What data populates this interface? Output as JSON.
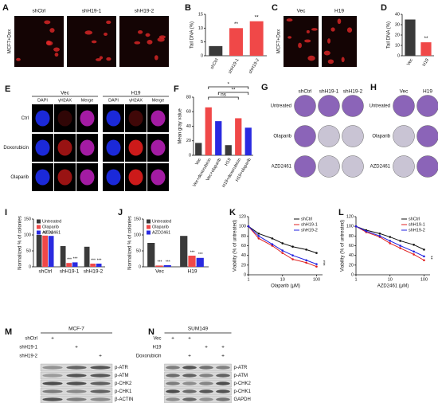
{
  "panels": {
    "A": {
      "letter": "A",
      "side": "MCF7+Dox",
      "labels": [
        "shCtrl",
        "shH19-1",
        "shH19-2"
      ]
    },
    "C": {
      "letter": "C",
      "side": "MCF7+Dox",
      "labels": [
        "Vec",
        "H19"
      ]
    },
    "E": {
      "letter": "E",
      "groups": [
        "Vec",
        "H19"
      ],
      "channels": [
        "DAPI",
        "γH2AX",
        "Merge",
        "DAPI",
        "γH2AX",
        "Merge"
      ],
      "rows": [
        "Ctrl",
        "Doxorubicin",
        "Olaparib"
      ]
    },
    "G": {
      "letter": "G",
      "columns": [
        "shCtrl",
        "shH19-1",
        "shH19-2"
      ],
      "rows": [
        "Untreated",
        "Olaparib",
        "AZD2461"
      ]
    },
    "H": {
      "letter": "H",
      "columns": [
        "Vec",
        "H19"
      ],
      "rows": [
        "Untreated",
        "Olaparib",
        "AZD2461"
      ]
    },
    "M": {
      "letter": "M",
      "title": "MCF-7",
      "conditions": [
        {
          "name": "shCtrl",
          "marks": [
            "+",
            null,
            null
          ]
        },
        {
          "name": "shH19-1",
          "marks": [
            null,
            "+",
            null
          ]
        },
        {
          "name": "shH19-2",
          "marks": [
            null,
            null,
            "+"
          ]
        }
      ],
      "proteins": [
        "p-ATR",
        "p-ATM",
        "p-CHK2",
        "p-CHK1",
        "β-ACTIN"
      ]
    },
    "N": {
      "letter": "N",
      "title": "SUM149",
      "conditions": [
        {
          "name": "Vec",
          "marks": [
            "+",
            "+",
            null,
            null
          ]
        },
        {
          "name": "H19",
          "marks": [
            null,
            null,
            "+",
            "+"
          ]
        },
        {
          "name": "Doxorubicin",
          "marks": [
            null,
            "+",
            null,
            "+"
          ]
        }
      ],
      "proteins": [
        "p-ATR",
        "p-ATM",
        "p-CHK2",
        "p-CHK1",
        "GAPDH"
      ]
    }
  },
  "chart_data": [
    {
      "panel": "B",
      "type": "bar",
      "ylabel": "Tail DNA (%)",
      "categories": [
        "shCtrl",
        "shH19-1",
        "shH19-2"
      ],
      "values": [
        3.5,
        10,
        12.5
      ],
      "colors": [
        "#3a3a3a",
        "#f04848",
        "#f04848"
      ],
      "annotations": [
        null,
        "**",
        "**"
      ],
      "ylim": [
        0,
        15
      ],
      "yticks": [
        0,
        5,
        10,
        15
      ]
    },
    {
      "panel": "D",
      "type": "bar",
      "ylabel": "Tail DNA (%)",
      "categories": [
        "Vec",
        "H19"
      ],
      "values": [
        35,
        13
      ],
      "colors": [
        "#3a3a3a",
        "#f04848"
      ],
      "annotations": [
        null,
        "**"
      ],
      "ylim": [
        0,
        40
      ],
      "yticks": [
        0,
        10,
        20,
        30,
        40
      ]
    },
    {
      "panel": "F",
      "type": "bar",
      "ylabel": "Mean gray value",
      "categories": [
        "Vec",
        "Vec+doxorubicin",
        "Vec+olaparib",
        "H19",
        "H19+doxorubicin",
        "H19+olaparib"
      ],
      "values": [
        17,
        66,
        47,
        14,
        51,
        38
      ],
      "colors": [
        "#3a3a3a",
        "#f04848",
        "#2a2ae0",
        "#3a3a3a",
        "#f04848",
        "#2a2ae0"
      ],
      "brackets": [
        "ns",
        "**",
        "*"
      ],
      "ylim": [
        0,
        80
      ],
      "yticks": [
        0,
        20,
        40,
        60,
        80
      ]
    },
    {
      "panel": "I",
      "type": "groupbar",
      "ylabel": "Normalized % of colonies",
      "categories": [
        "shCtrl",
        "shH19-1",
        "shH19-2"
      ],
      "series": [
        {
          "name": "Untreated",
          "color": "#3a3a3a",
          "values": [
            100,
            65,
            63
          ]
        },
        {
          "name": "Olaparib",
          "color": "#f04848",
          "values": [
            98,
            12,
            10
          ],
          "annotations": [
            "ns",
            "***",
            "***"
          ]
        },
        {
          "name": "AZD2461",
          "color": "#2a2ae0",
          "values": [
            97,
            14,
            10
          ],
          "annotations": [
            "ns",
            "***",
            "***"
          ]
        }
      ],
      "ylim": [
        0,
        150
      ],
      "yticks": [
        0,
        50,
        100,
        150
      ],
      "legend": "upper left"
    },
    {
      "panel": "J",
      "type": "groupbar",
      "ylabel": "Normalized % of colonies",
      "categories": [
        "Vec",
        "H19"
      ],
      "series": [
        {
          "name": "Untreated",
          "color": "#3a3a3a",
          "values": [
            75,
            97
          ]
        },
        {
          "name": "Olaparib",
          "color": "#f04848",
          "values": [
            4,
            35
          ],
          "annotations": [
            "***",
            "***"
          ]
        },
        {
          "name": "AZD2461",
          "color": "#2a2ae0",
          "values": [
            5,
            28
          ],
          "annotations": [
            "***",
            "***"
          ]
        }
      ],
      "ylim": [
        0,
        150
      ],
      "yticks": [
        0,
        50,
        100,
        150
      ],
      "legend": "upper left"
    },
    {
      "panel": "K",
      "type": "line",
      "ylabel": "Viability (% of untreated)",
      "xlabel": "Olaparib (μM)",
      "x": [
        1,
        2,
        5,
        10,
        20,
        50,
        100
      ],
      "series": [
        {
          "name": "shCtrl",
          "color": "#111111",
          "values": [
            100,
            85,
            75,
            65,
            58,
            52,
            45
          ]
        },
        {
          "name": "shH19-1",
          "color": "#e02020",
          "values": [
            100,
            75,
            60,
            45,
            32,
            25,
            17
          ]
        },
        {
          "name": "shH19-2",
          "color": "#2020e0",
          "values": [
            100,
            80,
            63,
            50,
            40,
            30,
            22
          ]
        }
      ],
      "annotation": "***",
      "log_x": true,
      "xlim": [
        1,
        150
      ],
      "xticks": [
        1,
        10,
        100
      ],
      "ylim": [
        0,
        120
      ],
      "yticks": [
        0,
        20,
        40,
        60,
        80,
        100,
        120
      ],
      "legend": "upper right"
    },
    {
      "panel": "L",
      "type": "line",
      "ylabel": "Viability (% of untreated)",
      "xlabel": "AZD2461 (μM)",
      "x": [
        1,
        2,
        5,
        10,
        20,
        50,
        100
      ],
      "series": [
        {
          "name": "shCtrl",
          "color": "#111111",
          "values": [
            100,
            92,
            85,
            78,
            70,
            62,
            52
          ]
        },
        {
          "name": "shH19-1",
          "color": "#e02020",
          "values": [
            100,
            88,
            78,
            65,
            55,
            42,
            30
          ]
        },
        {
          "name": "shH19-2",
          "color": "#2020e0",
          "values": [
            100,
            90,
            80,
            70,
            60,
            48,
            38
          ]
        }
      ],
      "annotation": "**",
      "log_x": true,
      "xlim": [
        1,
        150
      ],
      "xticks": [
        1,
        10,
        100
      ],
      "ylim": [
        0,
        120
      ],
      "yticks": [
        0,
        20,
        40,
        60,
        80,
        100,
        120
      ],
      "legend": "upper right"
    }
  ]
}
